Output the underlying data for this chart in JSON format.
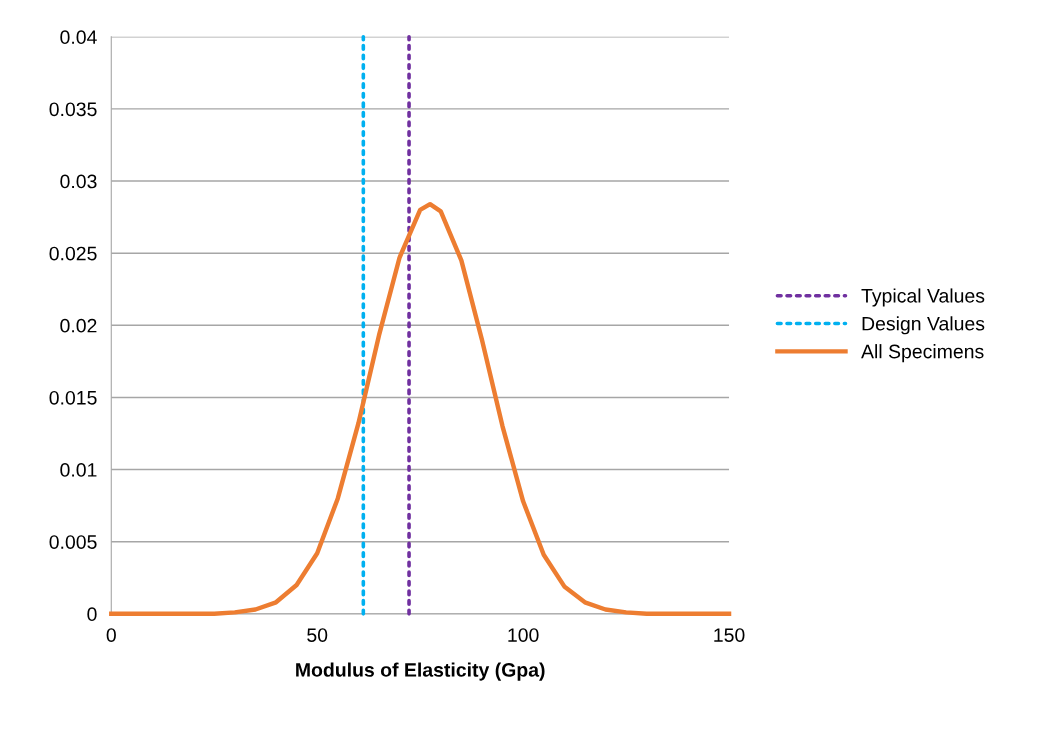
{
  "chart_data": {
    "type": "line",
    "xlabel": "Modulus of Elasticity (Gpa)",
    "xlim": [
      0,
      150
    ],
    "xticks": [
      0,
      50,
      100,
      150
    ],
    "ylim": [
      0,
      0.04
    ],
    "yticks": [
      0,
      0.005,
      0.01,
      0.015,
      0.02,
      0.025,
      0.03,
      0.035,
      0.04
    ],
    "grid": "y",
    "legend": "right",
    "marker": "none",
    "series": [
      {
        "name": "Typical Values",
        "color": "#7030a0",
        "line_style": "dotted",
        "x": [
          72.3,
          72.3
        ],
        "values": [
          0,
          0.04
        ]
      },
      {
        "name": "Design Values",
        "color": "#00b0f0",
        "line_style": "dotted",
        "x": [
          61.2,
          61.2
        ],
        "values": [
          0,
          0.04
        ]
      },
      {
        "name": "All Specimens",
        "color": "#ed7d31",
        "line_style": "solid",
        "x": [
          0,
          10,
          20,
          25,
          30,
          35,
          40,
          45,
          50,
          55,
          60,
          65,
          70,
          75,
          77.4,
          80,
          85,
          90,
          95,
          100,
          105,
          110,
          115,
          120,
          125,
          130,
          140,
          150
        ],
        "values": [
          0,
          0,
          0,
          0,
          0.0001,
          0.0003,
          0.0008,
          0.002,
          0.0042,
          0.008,
          0.0132,
          0.0193,
          0.0247,
          0.028,
          0.0284,
          0.0279,
          0.0245,
          0.019,
          0.013,
          0.0078,
          0.0041,
          0.0019,
          0.0008,
          0.0003,
          0.0001,
          0,
          0,
          0
        ]
      }
    ]
  }
}
